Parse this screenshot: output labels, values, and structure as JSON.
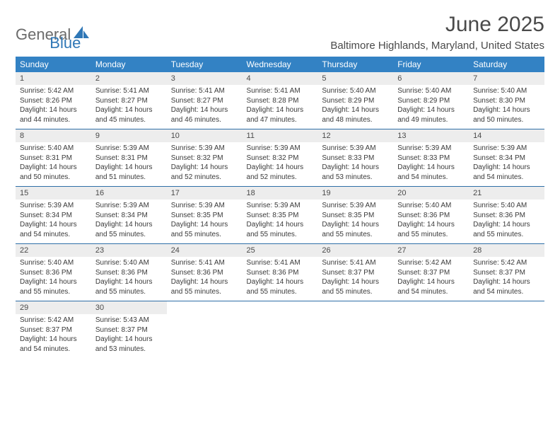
{
  "logo": {
    "part1": "General",
    "part2": "Blue"
  },
  "title": "June 2025",
  "location": "Baltimore Highlands, Maryland, United States",
  "colors": {
    "header_bg": "#3382c4",
    "header_text": "#ffffff",
    "daynum_bg": "#ededed",
    "rule": "#2f6fa8",
    "text": "#4a4a4a",
    "logo_gray": "#6b6b6b",
    "logo_blue": "#2f77b6"
  },
  "weekdays": [
    "Sunday",
    "Monday",
    "Tuesday",
    "Wednesday",
    "Thursday",
    "Friday",
    "Saturday"
  ],
  "weeks": [
    [
      {
        "n": "1",
        "sr": "5:42 AM",
        "ss": "8:26 PM",
        "dl": "14 hours and 44 minutes."
      },
      {
        "n": "2",
        "sr": "5:41 AM",
        "ss": "8:27 PM",
        "dl": "14 hours and 45 minutes."
      },
      {
        "n": "3",
        "sr": "5:41 AM",
        "ss": "8:27 PM",
        "dl": "14 hours and 46 minutes."
      },
      {
        "n": "4",
        "sr": "5:41 AM",
        "ss": "8:28 PM",
        "dl": "14 hours and 47 minutes."
      },
      {
        "n": "5",
        "sr": "5:40 AM",
        "ss": "8:29 PM",
        "dl": "14 hours and 48 minutes."
      },
      {
        "n": "6",
        "sr": "5:40 AM",
        "ss": "8:29 PM",
        "dl": "14 hours and 49 minutes."
      },
      {
        "n": "7",
        "sr": "5:40 AM",
        "ss": "8:30 PM",
        "dl": "14 hours and 50 minutes."
      }
    ],
    [
      {
        "n": "8",
        "sr": "5:40 AM",
        "ss": "8:31 PM",
        "dl": "14 hours and 50 minutes."
      },
      {
        "n": "9",
        "sr": "5:39 AM",
        "ss": "8:31 PM",
        "dl": "14 hours and 51 minutes."
      },
      {
        "n": "10",
        "sr": "5:39 AM",
        "ss": "8:32 PM",
        "dl": "14 hours and 52 minutes."
      },
      {
        "n": "11",
        "sr": "5:39 AM",
        "ss": "8:32 PM",
        "dl": "14 hours and 52 minutes."
      },
      {
        "n": "12",
        "sr": "5:39 AM",
        "ss": "8:33 PM",
        "dl": "14 hours and 53 minutes."
      },
      {
        "n": "13",
        "sr": "5:39 AM",
        "ss": "8:33 PM",
        "dl": "14 hours and 54 minutes."
      },
      {
        "n": "14",
        "sr": "5:39 AM",
        "ss": "8:34 PM",
        "dl": "14 hours and 54 minutes."
      }
    ],
    [
      {
        "n": "15",
        "sr": "5:39 AM",
        "ss": "8:34 PM",
        "dl": "14 hours and 54 minutes."
      },
      {
        "n": "16",
        "sr": "5:39 AM",
        "ss": "8:34 PM",
        "dl": "14 hours and 55 minutes."
      },
      {
        "n": "17",
        "sr": "5:39 AM",
        "ss": "8:35 PM",
        "dl": "14 hours and 55 minutes."
      },
      {
        "n": "18",
        "sr": "5:39 AM",
        "ss": "8:35 PM",
        "dl": "14 hours and 55 minutes."
      },
      {
        "n": "19",
        "sr": "5:39 AM",
        "ss": "8:35 PM",
        "dl": "14 hours and 55 minutes."
      },
      {
        "n": "20",
        "sr": "5:40 AM",
        "ss": "8:36 PM",
        "dl": "14 hours and 55 minutes."
      },
      {
        "n": "21",
        "sr": "5:40 AM",
        "ss": "8:36 PM",
        "dl": "14 hours and 55 minutes."
      }
    ],
    [
      {
        "n": "22",
        "sr": "5:40 AM",
        "ss": "8:36 PM",
        "dl": "14 hours and 55 minutes."
      },
      {
        "n": "23",
        "sr": "5:40 AM",
        "ss": "8:36 PM",
        "dl": "14 hours and 55 minutes."
      },
      {
        "n": "24",
        "sr": "5:41 AM",
        "ss": "8:36 PM",
        "dl": "14 hours and 55 minutes."
      },
      {
        "n": "25",
        "sr": "5:41 AM",
        "ss": "8:36 PM",
        "dl": "14 hours and 55 minutes."
      },
      {
        "n": "26",
        "sr": "5:41 AM",
        "ss": "8:37 PM",
        "dl": "14 hours and 55 minutes."
      },
      {
        "n": "27",
        "sr": "5:42 AM",
        "ss": "8:37 PM",
        "dl": "14 hours and 54 minutes."
      },
      {
        "n": "28",
        "sr": "5:42 AM",
        "ss": "8:37 PM",
        "dl": "14 hours and 54 minutes."
      }
    ],
    [
      {
        "n": "29",
        "sr": "5:42 AM",
        "ss": "8:37 PM",
        "dl": "14 hours and 54 minutes."
      },
      {
        "n": "30",
        "sr": "5:43 AM",
        "ss": "8:37 PM",
        "dl": "14 hours and 53 minutes."
      },
      null,
      null,
      null,
      null,
      null
    ]
  ],
  "labels": {
    "sunrise": "Sunrise: ",
    "sunset": "Sunset: ",
    "daylight": "Daylight: "
  }
}
